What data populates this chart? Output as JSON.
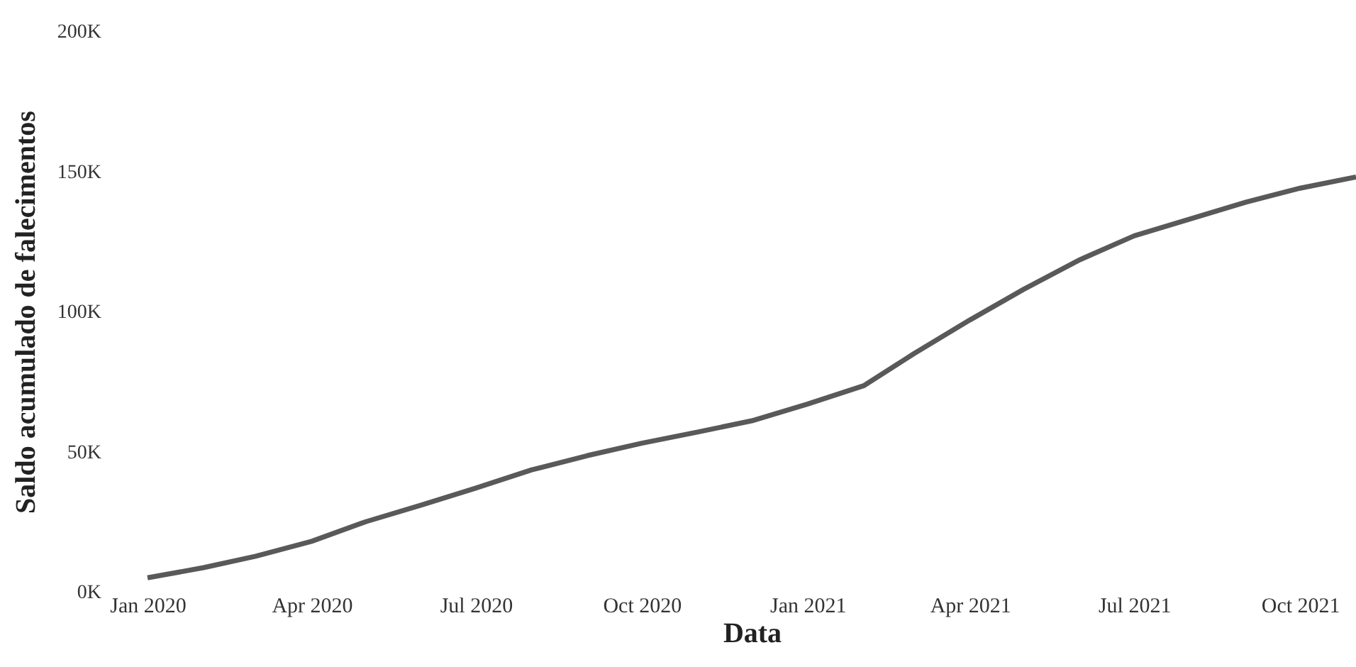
{
  "chart_data": {
    "type": "line",
    "xlabel": "Data",
    "ylabel": "Saldo acumulado de falecimentos",
    "x": [
      "2020-01",
      "2020-02",
      "2020-03",
      "2020-04",
      "2020-05",
      "2020-06",
      "2020-07",
      "2020-08",
      "2020-09",
      "2020-10",
      "2020-11",
      "2020-12",
      "2021-01",
      "2021-02",
      "2021-03",
      "2021-04",
      "2021-05",
      "2021-06",
      "2021-07",
      "2021-08",
      "2021-09",
      "2021-10",
      "2021-11"
    ],
    "series": [
      {
        "color": "#595959",
        "values": [
          5000,
          8600,
          12700,
          18000,
          25000,
          31000,
          37000,
          43500,
          48600,
          53000,
          57000,
          61000,
          67000,
          73500,
          85000,
          97000,
          108000,
          118500,
          127000,
          133000,
          139000,
          144000,
          148000
        ]
      }
    ],
    "xticks": [
      {
        "value": "2020-01",
        "label": "Jan 2020"
      },
      {
        "value": "2020-04",
        "label": "Apr 2020"
      },
      {
        "value": "2020-07",
        "label": "Jul 2020"
      },
      {
        "value": "2020-10",
        "label": "Oct 2020"
      },
      {
        "value": "2021-01",
        "label": "Jan 2021"
      },
      {
        "value": "2021-04",
        "label": "Apr 2021"
      },
      {
        "value": "2021-07",
        "label": "Jul 2021"
      },
      {
        "value": "2021-10",
        "label": "Oct 2021"
      }
    ],
    "xlim": [
      "2020-01",
      "2021-11"
    ],
    "ylim": [
      0,
      200000
    ],
    "yticks": [
      {
        "value": 0,
        "label": "0K"
      },
      {
        "value": 50000,
        "label": "50K"
      },
      {
        "value": 100000,
        "label": "100K"
      },
      {
        "value": 150000,
        "label": "150K"
      },
      {
        "value": 200000,
        "label": "200K"
      }
    ],
    "grid": false,
    "marker": "none",
    "line_style": "solid"
  }
}
